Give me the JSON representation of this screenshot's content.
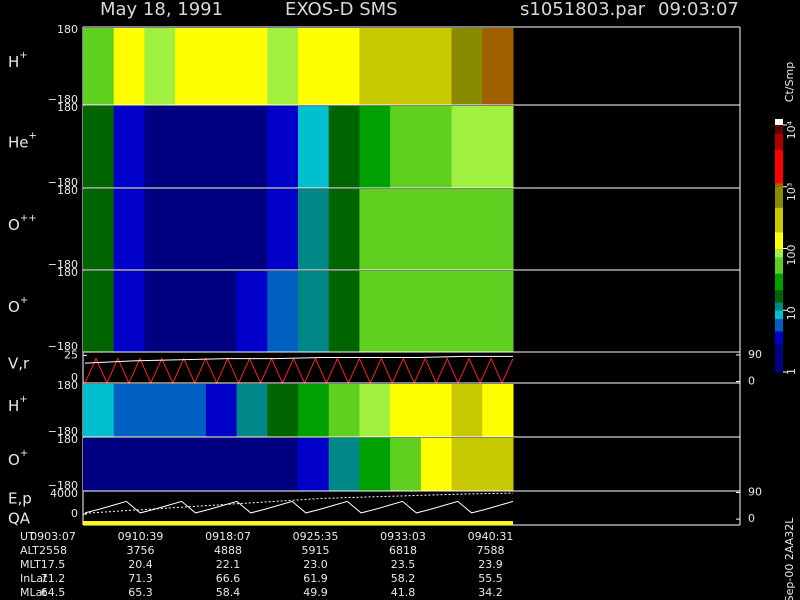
{
  "header": {
    "date": "May 18, 1991",
    "mission": "EXOS-D SMS",
    "file": "s1051803.par",
    "time": "09:03:07"
  },
  "chart_data": [
    {
      "type": "heatmap",
      "label": "H",
      "sup": "+",
      "ylim": [
        -180,
        180
      ],
      "yticks": [
        180,
        {
          "value": -180,
          "label": "−180"
        }
      ],
      "values": [
        60,
        100,
        80,
        100,
        150,
        100,
        80,
        100,
        150,
        200,
        300,
        500,
        800,
        1000
      ]
    },
    {
      "type": "heatmap",
      "label": "He",
      "sup": "+",
      "ylim": [
        -180,
        180
      ],
      "yticks": [
        180,
        {
          "value": -180,
          "label": "−180"
        }
      ],
      "values": [
        20,
        5,
        3,
        3,
        3,
        3,
        5,
        8,
        15,
        30,
        50,
        60,
        80,
        80
      ]
    },
    {
      "type": "heatmap",
      "label": "O",
      "sup": "++",
      "ylim": [
        -180,
        180
      ],
      "yticks": [
        180,
        {
          "value": -180,
          "label": "−180"
        }
      ],
      "values": [
        15,
        5,
        3,
        3,
        3,
        3,
        5,
        10,
        20,
        40,
        60,
        60,
        60,
        60
      ]
    },
    {
      "type": "heatmap",
      "label": "O",
      "sup": "+",
      "ylim": [
        -180,
        180
      ],
      "yticks": [
        180,
        {
          "value": -180,
          "label": "−180"
        }
      ],
      "values": [
        15,
        5,
        3,
        3,
        3,
        4,
        6,
        10,
        20,
        40,
        60,
        60,
        60,
        60
      ]
    },
    {
      "type": "line",
      "label": "V,r",
      "ylim": [
        0,
        28
      ],
      "yticks": [
        0,
        25
      ],
      "y2lim": [
        -5,
        100
      ],
      "y2ticks": [
        0,
        90
      ],
      "series": [
        {
          "color": "#ff2020",
          "values": [
            0,
            22,
            0,
            22,
            0,
            22,
            0,
            22,
            0,
            22,
            0,
            22,
            0,
            22,
            0,
            22,
            0,
            22,
            0,
            22,
            0,
            22,
            0,
            22,
            0,
            22,
            0,
            22,
            0,
            22,
            0,
            22,
            0,
            22,
            0,
            22,
            0,
            22,
            0,
            22
          ]
        },
        {
          "color": "#ffffff",
          "values": [
            18,
            20,
            21,
            22,
            22,
            23,
            23,
            23,
            24,
            24
          ]
        }
      ]
    },
    {
      "type": "heatmap",
      "label": "H",
      "sup": "+",
      "ylim": [
        -180,
        180
      ],
      "yticks": [
        180,
        {
          "value": -180,
          "label": "−180"
        }
      ],
      "values": [
        8,
        6,
        6,
        6,
        5,
        10,
        20,
        30,
        50,
        80,
        100,
        150,
        200,
        150
      ]
    },
    {
      "type": "heatmap",
      "label": "O",
      "sup": "+",
      "ylim": [
        -180,
        180
      ],
      "yticks": [
        180,
        {
          "value": -180,
          "label": "−180"
        }
      ],
      "values": [
        2,
        2,
        2,
        2,
        2,
        2,
        3,
        5,
        10,
        30,
        60,
        100,
        200,
        300
      ]
    },
    {
      "type": "line",
      "label": "E,p",
      "label2": "QA",
      "ylim": [
        -1900,
        4000
      ],
      "yticks": [
        0,
        4000
      ],
      "y2lim": [
        -20,
        95
      ],
      "y2ticks": [
        0,
        90
      ],
      "series": [
        {
          "color": "#ffffff",
          "values": [
            200,
            800,
            1500,
            2200,
            200,
            800,
            1500,
            2200,
            200,
            800,
            1500,
            2200,
            200,
            800,
            1500,
            2200,
            200,
            800,
            1500,
            2200,
            200,
            800,
            1500,
            2200,
            200,
            800,
            1500,
            2200,
            200,
            800,
            1500,
            2200
          ]
        },
        {
          "color": "#ffffff",
          "axis": "y2",
          "values": [
            20,
            30,
            40,
            50,
            60,
            70,
            75,
            80,
            85,
            88
          ]
        }
      ]
    },
    {
      "type": "colorbar",
      "title": "Ct/Smp",
      "log": true,
      "clim": [
        1,
        10000
      ],
      "ticks": [
        1,
        10,
        100,
        {
          "value": 1000,
          "label": "10³"
        },
        {
          "value": 10000,
          "label": "10⁴"
        }
      ]
    }
  ],
  "footer": {
    "rows": [
      {
        "label": "UT",
        "values": [
          "0903:07",
          "0910:39",
          "0918:07",
          "0925:35",
          "0933:03",
          "0940:31"
        ]
      },
      {
        "label": "ALT",
        "values": [
          "2558",
          "3756",
          "4888",
          "5915",
          "6818",
          "7588"
        ]
      },
      {
        "label": "MLT",
        "values": [
          "17.5",
          "20.4",
          "22.1",
          "23.0",
          "23.5",
          "23.9"
        ]
      },
      {
        "label": "InLat",
        "values": [
          "71.2",
          "71.3",
          "66.6",
          "61.9",
          "58.2",
          "55.5"
        ]
      },
      {
        "label": "MLat",
        "values": [
          "64.5",
          "65.3",
          "58.4",
          "49.9",
          "41.8",
          "34.2"
        ]
      }
    ],
    "side": "Sep-00 2AA32L"
  }
}
